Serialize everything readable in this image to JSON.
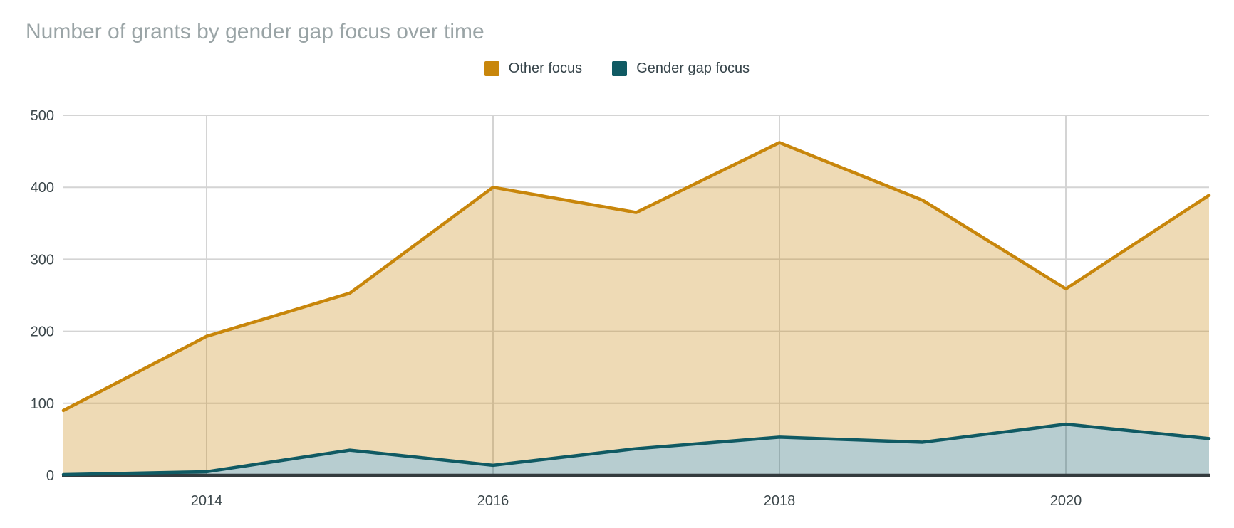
{
  "title": "Number of grants by gender gap focus over time",
  "colors": {
    "background": "#FFFFFF",
    "title_text": "#9AA4A6",
    "tick_text": "#3C474B",
    "legend_text": "#36444A",
    "gridline": "#D4D4D4",
    "axis_line": "#343B3E",
    "series_other": "#C8860B",
    "series_gender_gap": "#105A63"
  },
  "legend": {
    "items": [
      {
        "label": "Other focus",
        "color": "#C8860B"
      },
      {
        "label": "Gender gap focus",
        "color": "#105A63"
      }
    ]
  },
  "chart_data": {
    "type": "area",
    "title": "Number of grants by gender gap focus over time",
    "x": [
      2013,
      2014,
      2015,
      2016,
      2017,
      2018,
      2019,
      2020,
      2021
    ],
    "series": [
      {
        "name": "Other focus",
        "color": "#C8860B",
        "fill_opacity": 0.3,
        "values": [
          90,
          193,
          253,
          400,
          365,
          462,
          382,
          259,
          389
        ]
      },
      {
        "name": "Gender gap focus",
        "color": "#105A63",
        "fill_opacity": 0.3,
        "values": [
          1,
          5,
          35,
          14,
          37,
          53,
          46,
          71,
          51
        ]
      }
    ],
    "xlabel": "",
    "ylabel": "",
    "xlim": [
      2013,
      2021
    ],
    "ylim": [
      0,
      500
    ],
    "x_ticks": [
      2014,
      2016,
      2018,
      2020
    ],
    "y_ticks": [
      0,
      100,
      200,
      300,
      400,
      500
    ],
    "grid": true,
    "legend_position": "top"
  }
}
